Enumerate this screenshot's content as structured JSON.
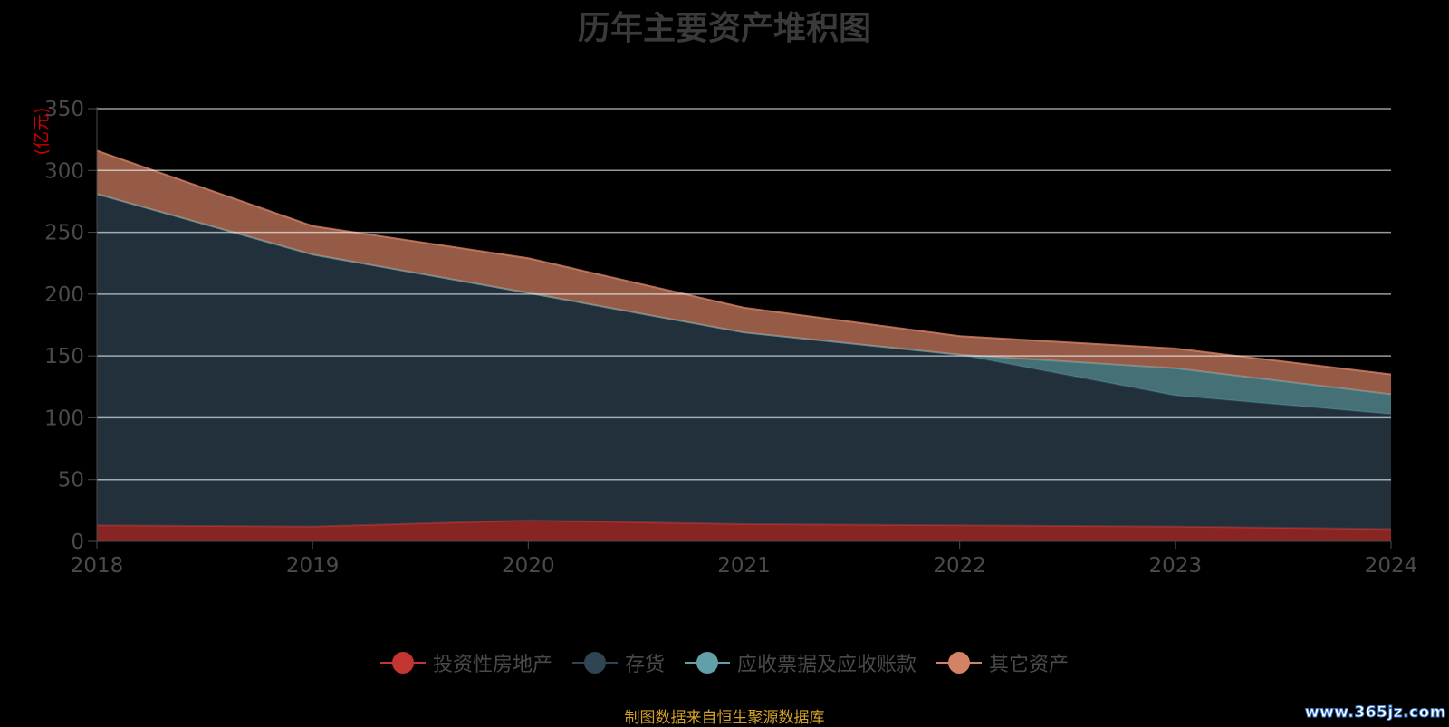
{
  "chart_data": {
    "type": "area",
    "stacked": true,
    "title": "历年主要资产堆积图",
    "ylabel": "(亿元)",
    "xlabel": "",
    "ylim": [
      0,
      350
    ],
    "yticks": [
      0,
      50,
      100,
      150,
      200,
      250,
      300,
      350
    ],
    "x": [
      "2018",
      "2019",
      "2020",
      "2021",
      "2022",
      "2023",
      "2024"
    ],
    "grid": true,
    "legend_position": "bottom",
    "series": [
      {
        "name": "投资性房地产",
        "color": "#c23531",
        "values": [
          13,
          12,
          17,
          14,
          13,
          12,
          10
        ]
      },
      {
        "name": "存货",
        "color": "#2f4554",
        "values": [
          268,
          220,
          184,
          155,
          138,
          106,
          93
        ]
      },
      {
        "name": "应收票据及应收账款",
        "color": "#61a0a8",
        "values": [
          0,
          0,
          0,
          0,
          0,
          22,
          16
        ]
      },
      {
        "name": "其它资产",
        "color": "#d48265",
        "values": [
          35,
          23,
          28,
          20,
          15,
          16,
          16
        ]
      }
    ]
  },
  "source_note": "制图数据来自恒生聚源数据库",
  "watermark": "www.365jz.com"
}
